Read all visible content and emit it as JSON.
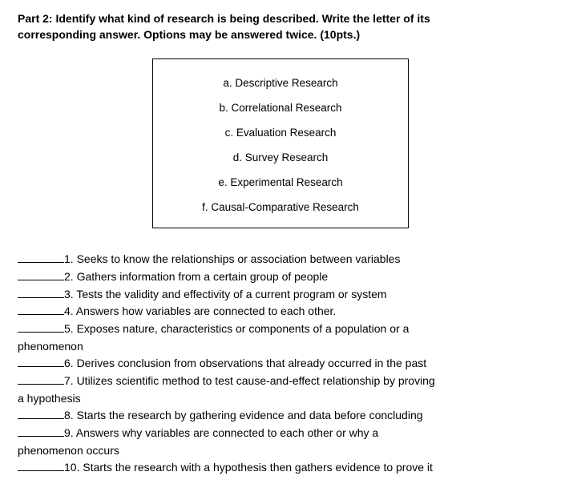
{
  "header": {
    "title_line1": "Part 2: Identify what kind of research is being described.  Write the letter of its",
    "title_line2": "corresponding answer. Options may be answered twice. (10pts.)"
  },
  "options": {
    "a": "a. Descriptive Research",
    "b": "b. Correlational Research",
    "c": "c. Evaluation Research",
    "d": "d. Survey Research",
    "e": "e. Experimental Research",
    "f": "f. Causal-Comparative Research"
  },
  "questions": {
    "q1": "1. Seeks to know the relationships or association between variables",
    "q2": "2. Gathers information from a certain group of people",
    "q3": "3. Tests the validity and effectivity of a current program or system",
    "q4": "4. Answers how variables are connected to each other.",
    "q5": "5. Exposes nature, characteristics or components of a population or a",
    "q5_cont": "phenomenon",
    "q6": "6. Derives conclusion from observations that already occurred in the past",
    "q7": "7. Utilizes scientific method to test cause-and-effect relationship by proving",
    "q7_cont": "a hypothesis",
    "q8": "8. Starts the research by gathering evidence and data before concluding",
    "q9": "9. Answers why variables are connected to each other or why a",
    "q9_cont": "phenomenon occurs",
    "q10": "10. Starts the research with a hypothesis then gathers evidence to prove it"
  },
  "style": {
    "body_width": 700,
    "body_height": 619,
    "background_color": "#ffffff",
    "text_color": "#000000",
    "header_fontsize": 14,
    "header_fontweight": "bold",
    "options_box_border": "1px solid #000000",
    "options_box_width": 320,
    "option_fontsize": 13.5,
    "question_fontsize": 14,
    "blank_width": 58,
    "blank_border": "1px solid #000000",
    "line_height": 1.55
  }
}
